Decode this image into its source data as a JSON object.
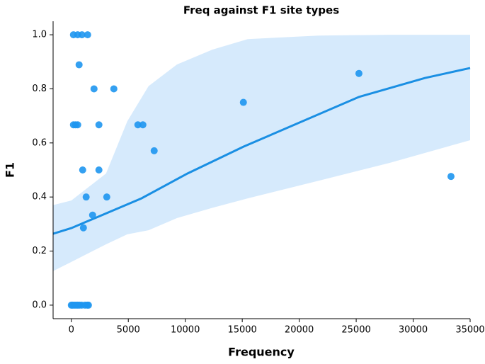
{
  "chart_data": {
    "type": "scatter",
    "title": "Freq against F1 site types",
    "x_label": "Frequency",
    "y_label": "F1",
    "xlim": [
      -1600,
      35000
    ],
    "ylim": [
      -0.05,
      1.05
    ],
    "xticks": [
      0,
      5000,
      10000,
      15000,
      20000,
      25000,
      30000,
      35000
    ],
    "yticks": [
      {
        "value": 0,
        "label": "0.0"
      },
      0.2,
      0.4,
      0.6,
      0.8,
      {
        "value": 1,
        "label": "1.0"
      }
    ],
    "points": {
      "color": "#1e96ef",
      "x": [
        186,
        559,
        932,
        1430,
        680,
        1990,
        3730,
        186,
        373,
        559,
        2420,
        5840,
        6280,
        7270,
        995,
        2420,
        1300,
        3110,
        1865,
        1060,
        0,
        100,
        250,
        400,
        550,
        700,
        900,
        1200,
        1400,
        1500,
        15100,
        25240,
        33320
      ],
      "y": [
        1.0,
        1.0,
        1.0,
        1.0,
        0.889,
        0.8,
        0.8,
        0.667,
        0.667,
        0.667,
        0.667,
        0.667,
        0.667,
        0.571,
        0.5,
        0.5,
        0.4,
        0.4,
        0.333,
        0.286,
        0,
        0,
        0,
        0,
        0,
        0,
        0,
        0,
        0,
        0,
        0.75,
        0.857,
        0.476
      ]
    },
    "fit": {
      "color": "#1a8fe3",
      "x": [
        -1600,
        0,
        6154,
        10195,
        15106,
        25240,
        31021,
        35000
      ],
      "y": [
        0.264,
        0.285,
        0.395,
        0.487,
        0.586,
        0.77,
        0.84,
        0.877
      ]
    },
    "band": {
      "color": "#cfe6fb",
      "x": [
        -1600,
        0,
        3046,
        4911,
        6776,
        9263,
        12371,
        15480,
        21696,
        27913,
        35000
      ],
      "upper": [
        0.37,
        0.387,
        0.487,
        0.68,
        0.81,
        0.89,
        0.945,
        0.984,
        0.997,
        1.0,
        1.0
      ],
      "lower": [
        0.126,
        0.16,
        0.225,
        0.262,
        0.277,
        0.322,
        0.36,
        0.395,
        0.46,
        0.526,
        0.61
      ]
    }
  }
}
